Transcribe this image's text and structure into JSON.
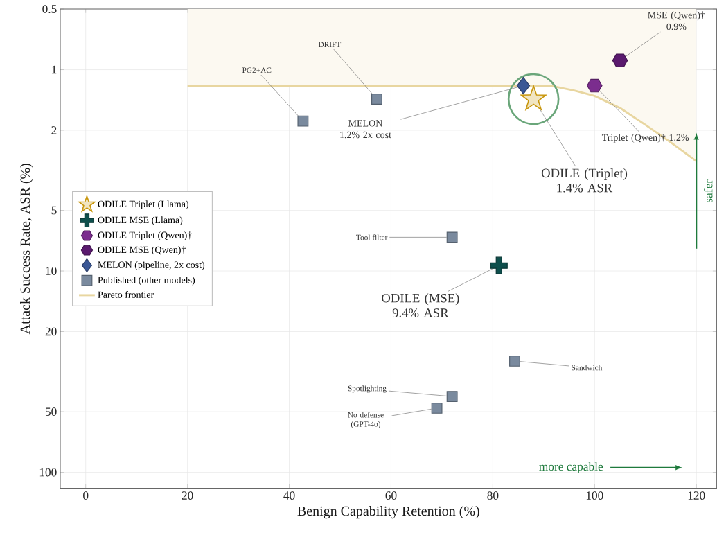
{
  "chart_data": {
    "type": "scatter",
    "xlabel": "Benign Capability Retention (%)",
    "ylabel": "Attack Success Rate, ASR (%)",
    "xlim": [
      -5,
      124
    ],
    "ylim": [
      120,
      0.5
    ],
    "log": "y",
    "grid": true,
    "legend": "left",
    "xticks": [
      0,
      20,
      40,
      60,
      80,
      100,
      120
    ],
    "yticks": [
      0.5,
      1,
      2,
      5,
      10,
      20,
      50,
      100
    ],
    "series": [
      {
        "name": "ODILE Triplet (Llama)",
        "marker": "star",
        "color": "#c8960c",
        "x": [
          88
        ],
        "values": [
          1.4
        ]
      },
      {
        "name": "ODILE MSE (Llama)",
        "marker": "cross",
        "color": "#0e4f4c",
        "x": [
          81.2
        ],
        "values": [
          9.4
        ]
      },
      {
        "name": "ODILE Triplet (Qwen)†",
        "color": "#7b2d8e",
        "x": [
          100
        ],
        "values": [
          1.2
        ]
      },
      {
        "name": "ODILE MSE (Qwen)†",
        "color": "#5a1a6e",
        "x": [
          105
        ],
        "values": [
          0.9
        ]
      },
      {
        "name": "MELON (pipeline, 2x cost)",
        "marker": "diamond",
        "color": "#3a5795",
        "x": [
          86
        ],
        "values": [
          1.2
        ]
      },
      {
        "name": "Published (other models)",
        "marker": "square",
        "color": "#7a8a9e",
        "x": [
          42.7,
          57.2,
          72,
          84.3,
          72,
          69
        ],
        "values": [
          1.8,
          1.4,
          6.8,
          28,
          42,
          48
        ]
      },
      {
        "name": "Pareto frontier",
        "type": "area",
        "marker": "none",
        "line_style": "solid",
        "color": "#e8d6a0",
        "x": [
          20,
          88,
          92,
          96,
          100,
          105,
          110,
          115,
          120
        ],
        "values": [
          1.2,
          1.2,
          1.21,
          1.27,
          1.35,
          1.55,
          1.88,
          2.3,
          2.85
        ]
      }
    ],
    "annotations": [
      {
        "text": "PG2+AC",
        "x": 42.7,
        "y": 1.8
      },
      {
        "text": "DRIFT",
        "x": 57.2,
        "y": 1.4
      },
      {
        "text": "MELON 1.2% 2x cost",
        "x": 86,
        "y": 1.2
      },
      {
        "text": "ODILE (Triplet) 1.4% ASR",
        "x": 88,
        "y": 1.4
      },
      {
        "text": "Triplet (Qwen)† 1.2%",
        "x": 100,
        "y": 1.2
      },
      {
        "text": "MSE (Qwen)† 0.9%",
        "x": 105,
        "y": 0.9
      },
      {
        "text": "Tool filter",
        "x": 72,
        "y": 6.8
      },
      {
        "text": "ODILE (MSE) 9.4% ASR",
        "x": 81.2,
        "y": 9.4
      },
      {
        "text": "Sandwich",
        "x": 84.3,
        "y": 28
      },
      {
        "text": "Spotlighting",
        "x": 72,
        "y": 42
      },
      {
        "text": "No defense (GPT-4o)",
        "x": 69,
        "y": 48
      },
      "safer",
      "more capable"
    ]
  }
}
